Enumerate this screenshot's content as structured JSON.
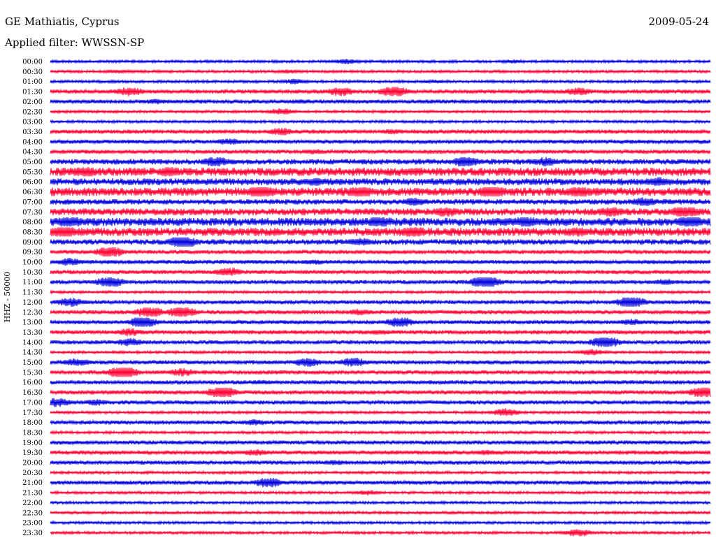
{
  "header": {
    "station": "GE Mathiatis, Cyprus",
    "date": "2009-05-24",
    "filter": "Applied filter: WWSSN-SP"
  },
  "chart_data": {
    "type": "line",
    "title": "GE Mathiatis, Cyprus",
    "subtitle": "Applied filter: WWSSN-SP",
    "date": "2009-05-24",
    "ylabel": "HHZ - 50000",
    "xlabel": "",
    "colors": {
      "even_rows": "#0000dd",
      "odd_rows": "#ff0033"
    },
    "rows": [
      {
        "time": "00:00",
        "amplitude": 2,
        "bursts": [
          {
            "x": 0.45,
            "amplitude": 4
          },
          {
            "x": 0.7,
            "amplitude": 3
          }
        ]
      },
      {
        "time": "00:30",
        "amplitude": 2,
        "bursts": [
          {
            "x": 0.1,
            "amplitude": 3
          },
          {
            "x": 0.36,
            "amplitude": 3
          }
        ]
      },
      {
        "time": "01:00",
        "amplitude": 2,
        "bursts": [
          {
            "x": 0.37,
            "amplitude": 4
          },
          {
            "x": 0.58,
            "amplitude": 3
          }
        ]
      },
      {
        "time": "01:30",
        "amplitude": 3,
        "bursts": [
          {
            "x": 0.12,
            "amplitude": 7
          },
          {
            "x": 0.44,
            "amplitude": 7
          },
          {
            "x": 0.52,
            "amplitude": 9
          },
          {
            "x": 0.8,
            "amplitude": 6
          }
        ]
      },
      {
        "time": "02:00",
        "amplitude": 3,
        "bursts": [
          {
            "x": 0.16,
            "amplitude": 4
          },
          {
            "x": 0.38,
            "amplitude": 4
          }
        ]
      },
      {
        "time": "02:30",
        "amplitude": 2,
        "bursts": [
          {
            "x": 0.35,
            "amplitude": 5
          }
        ]
      },
      {
        "time": "03:00",
        "amplitude": 2,
        "bursts": []
      },
      {
        "time": "03:30",
        "amplitude": 3,
        "bursts": [
          {
            "x": 0.35,
            "amplitude": 6
          },
          {
            "x": 0.52,
            "amplitude": 4
          }
        ]
      },
      {
        "time": "04:00",
        "amplitude": 3,
        "bursts": [
          {
            "x": 0.27,
            "amplitude": 5
          },
          {
            "x": 0.12,
            "amplitude": 3
          }
        ]
      },
      {
        "time": "04:30",
        "amplitude": 3,
        "bursts": [
          {
            "x": 0.4,
            "amplitude": 4
          },
          {
            "x": 0.75,
            "amplitude": 3
          }
        ]
      },
      {
        "time": "05:00",
        "amplitude": 4,
        "bursts": [
          {
            "x": 0.25,
            "amplitude": 8
          },
          {
            "x": 0.63,
            "amplitude": 9
          },
          {
            "x": 0.75,
            "amplitude": 7
          }
        ]
      },
      {
        "time": "05:30",
        "amplitude": 6,
        "bursts": [
          {
            "x": 0.05,
            "amplitude": 9
          },
          {
            "x": 0.18,
            "amplitude": 8
          },
          {
            "x": 0.55,
            "amplitude": 6
          }
        ]
      },
      {
        "time": "06:00",
        "amplitude": 5,
        "bursts": [
          {
            "x": 0.4,
            "amplitude": 7
          },
          {
            "x": 0.92,
            "amplitude": 7
          }
        ]
      },
      {
        "time": "06:30",
        "amplitude": 6,
        "bursts": [
          {
            "x": 0.32,
            "amplitude": 11
          },
          {
            "x": 0.47,
            "amplitude": 10
          },
          {
            "x": 0.67,
            "amplitude": 11
          },
          {
            "x": 0.8,
            "amplitude": 9
          }
        ]
      },
      {
        "time": "07:00",
        "amplitude": 4,
        "bursts": [
          {
            "x": 0.55,
            "amplitude": 6
          },
          {
            "x": 0.9,
            "amplitude": 7
          }
        ]
      },
      {
        "time": "07:30",
        "amplitude": 5,
        "bursts": [
          {
            "x": 0.6,
            "amplitude": 8
          },
          {
            "x": 0.85,
            "amplitude": 9
          },
          {
            "x": 0.96,
            "amplitude": 10
          }
        ]
      },
      {
        "time": "08:00",
        "amplitude": 6,
        "bursts": [
          {
            "x": 0.03,
            "amplitude": 9
          },
          {
            "x": 0.5,
            "amplitude": 9
          },
          {
            "x": 0.72,
            "amplitude": 9
          },
          {
            "x": 0.97,
            "amplitude": 10
          }
        ]
      },
      {
        "time": "08:30",
        "amplitude": 6,
        "bursts": [
          {
            "x": 0.02,
            "amplitude": 11
          },
          {
            "x": 0.55,
            "amplitude": 9
          },
          {
            "x": 0.8,
            "amplitude": 8
          }
        ]
      },
      {
        "time": "09:00",
        "amplitude": 4,
        "bursts": [
          {
            "x": 0.2,
            "amplitude": 11
          },
          {
            "x": 0.47,
            "amplitude": 6
          }
        ]
      },
      {
        "time": "09:30",
        "amplitude": 3,
        "bursts": [
          {
            "x": 0.09,
            "amplitude": 9
          }
        ]
      },
      {
        "time": "10:00",
        "amplitude": 3,
        "bursts": [
          {
            "x": 0.03,
            "amplitude": 6
          },
          {
            "x": 0.4,
            "amplitude": 4
          }
        ]
      },
      {
        "time": "10:30",
        "amplitude": 3,
        "bursts": [
          {
            "x": 0.27,
            "amplitude": 7
          }
        ]
      },
      {
        "time": "11:00",
        "amplitude": 3,
        "bursts": [
          {
            "x": 0.09,
            "amplitude": 9
          },
          {
            "x": 0.66,
            "amplitude": 11
          },
          {
            "x": 0.93,
            "amplitude": 5
          }
        ]
      },
      {
        "time": "11:30",
        "amplitude": 2,
        "bursts": []
      },
      {
        "time": "12:00",
        "amplitude": 3,
        "bursts": [
          {
            "x": 0.03,
            "amplitude": 7
          },
          {
            "x": 0.88,
            "amplitude": 10
          }
        ]
      },
      {
        "time": "12:30",
        "amplitude": 3,
        "bursts": [
          {
            "x": 0.15,
            "amplitude": 9
          },
          {
            "x": 0.2,
            "amplitude": 10
          },
          {
            "x": 0.47,
            "amplitude": 5
          }
        ]
      },
      {
        "time": "13:00",
        "amplitude": 3,
        "bursts": [
          {
            "x": 0.14,
            "amplitude": 9
          },
          {
            "x": 0.53,
            "amplitude": 8
          },
          {
            "x": 0.88,
            "amplitude": 5
          }
        ]
      },
      {
        "time": "13:30",
        "amplitude": 3,
        "bursts": [
          {
            "x": 0.12,
            "amplitude": 6
          },
          {
            "x": 0.5,
            "amplitude": 4
          }
        ]
      },
      {
        "time": "14:00",
        "amplitude": 3,
        "bursts": [
          {
            "x": 0.12,
            "amplitude": 6
          },
          {
            "x": 0.84,
            "amplitude": 10
          }
        ]
      },
      {
        "time": "14:30",
        "amplitude": 2,
        "bursts": [
          {
            "x": 0.82,
            "amplitude": 5
          }
        ]
      },
      {
        "time": "15:00",
        "amplitude": 3,
        "bursts": [
          {
            "x": 0.04,
            "amplitude": 6
          },
          {
            "x": 0.39,
            "amplitude": 7
          },
          {
            "x": 0.46,
            "amplitude": 7
          }
        ]
      },
      {
        "time": "15:30",
        "amplitude": 3,
        "bursts": [
          {
            "x": 0.11,
            "amplitude": 11
          },
          {
            "x": 0.2,
            "amplitude": 6
          }
        ]
      },
      {
        "time": "16:00",
        "amplitude": 3,
        "bursts": [
          {
            "x": 0.32,
            "amplitude": 4
          }
        ]
      },
      {
        "time": "16:30",
        "amplitude": 3,
        "bursts": [
          {
            "x": 0.26,
            "amplitude": 10
          },
          {
            "x": 0.99,
            "amplitude": 9
          }
        ]
      },
      {
        "time": "17:00",
        "amplitude": 3,
        "bursts": [
          {
            "x": 0.01,
            "amplitude": 7
          },
          {
            "x": 0.07,
            "amplitude": 5
          }
        ]
      },
      {
        "time": "17:30",
        "amplitude": 2,
        "bursts": [
          {
            "x": 0.69,
            "amplitude": 6
          }
        ]
      },
      {
        "time": "18:00",
        "amplitude": 3,
        "bursts": [
          {
            "x": 0.31,
            "amplitude": 5
          }
        ]
      },
      {
        "time": "18:30",
        "amplitude": 2,
        "bursts": []
      },
      {
        "time": "19:00",
        "amplitude": 3,
        "bursts": []
      },
      {
        "time": "19:30",
        "amplitude": 3,
        "bursts": [
          {
            "x": 0.31,
            "amplitude": 5
          },
          {
            "x": 0.66,
            "amplitude": 4
          }
        ]
      },
      {
        "time": "20:00",
        "amplitude": 3,
        "bursts": [
          {
            "x": 0.43,
            "amplitude": 4
          }
        ]
      },
      {
        "time": "20:30",
        "amplitude": 2,
        "bursts": []
      },
      {
        "time": "21:00",
        "amplitude": 3,
        "bursts": [
          {
            "x": 0.33,
            "amplitude": 8
          }
        ]
      },
      {
        "time": "21:30",
        "amplitude": 2,
        "bursts": [
          {
            "x": 0.48,
            "amplitude": 4
          }
        ]
      },
      {
        "time": "22:00",
        "amplitude": 2,
        "bursts": []
      },
      {
        "time": "22:30",
        "amplitude": 2,
        "bursts": []
      },
      {
        "time": "23:00",
        "amplitude": 2,
        "bursts": []
      },
      {
        "time": "23:30",
        "amplitude": 2,
        "bursts": [
          {
            "x": 0.8,
            "amplitude": 6
          }
        ]
      }
    ]
  }
}
